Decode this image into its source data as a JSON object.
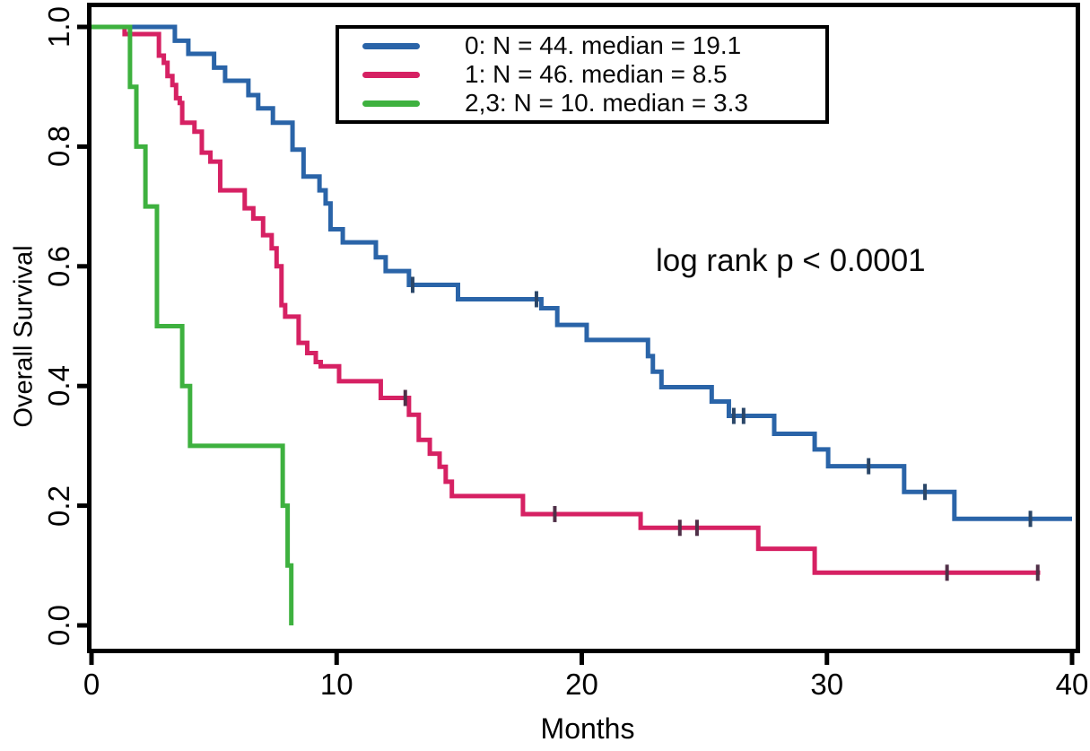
{
  "chart_data": {
    "type": "line",
    "subtype": "kaplan-meier-step-curves",
    "title": "",
    "xlabel": "Months",
    "ylabel": "Overall Survival",
    "annotation": "log rank p < 0.0001",
    "xlim": [
      0,
      40
    ],
    "ylim": [
      0.0,
      1.0
    ],
    "xticks": [
      "0",
      "10",
      "20",
      "30",
      "40"
    ],
    "yticks": [
      "0.0",
      "0.2",
      "0.4",
      "0.6",
      "0.8",
      "1.0"
    ],
    "grid": false,
    "legend_position": "top-left-inset",
    "axis_color": "#000000",
    "series": [
      {
        "name": "0",
        "label": "0: N = 44. median = 19.1",
        "n": 44,
        "median": 19.1,
        "color": "#2a64a8",
        "censor_color": "#2a4668",
        "start": [
          0,
          1.0
        ],
        "end_t": 40,
        "steps": [
          [
            3.4,
            0.977
          ],
          [
            3.95,
            0.955
          ],
          [
            5.0,
            0.932
          ],
          [
            5.45,
            0.91
          ],
          [
            6.4,
            0.886
          ],
          [
            6.8,
            0.864
          ],
          [
            7.4,
            0.84
          ],
          [
            8.2,
            0.795
          ],
          [
            8.65,
            0.75
          ],
          [
            9.3,
            0.727
          ],
          [
            9.55,
            0.705
          ],
          [
            9.75,
            0.662
          ],
          [
            10.25,
            0.64
          ],
          [
            11.6,
            0.615
          ],
          [
            12.0,
            0.592
          ],
          [
            12.95,
            0.569
          ],
          [
            14.95,
            0.545
          ],
          [
            18.35,
            0.53
          ],
          [
            19.0,
            0.502
          ],
          [
            20.2,
            0.477
          ],
          [
            22.7,
            0.45
          ],
          [
            22.9,
            0.424
          ],
          [
            23.25,
            0.398
          ],
          [
            25.3,
            0.374
          ],
          [
            26.0,
            0.35
          ],
          [
            27.85,
            0.32
          ],
          [
            29.5,
            0.294
          ],
          [
            30.05,
            0.266
          ],
          [
            33.15,
            0.223
          ],
          [
            35.2,
            0.178
          ]
        ],
        "censors": [
          [
            13.1,
            0.569
          ],
          [
            18.15,
            0.545
          ],
          [
            26.2,
            0.35
          ],
          [
            26.6,
            0.35
          ],
          [
            31.7,
            0.266
          ],
          [
            34.0,
            0.223
          ],
          [
            38.3,
            0.178
          ]
        ]
      },
      {
        "name": "1",
        "label": "1: N = 46. median = 8.5",
        "n": 46,
        "median": 8.5,
        "color": "#d62163",
        "censor_color": "#503048",
        "start": [
          0,
          1.0
        ],
        "end_t": 38.7,
        "steps": [
          [
            1.35,
            0.988
          ],
          [
            2.75,
            0.952
          ],
          [
            2.95,
            0.94
          ],
          [
            3.1,
            0.918
          ],
          [
            3.3,
            0.903
          ],
          [
            3.45,
            0.881
          ],
          [
            3.6,
            0.873
          ],
          [
            3.7,
            0.84
          ],
          [
            4.2,
            0.825
          ],
          [
            4.5,
            0.79
          ],
          [
            4.85,
            0.775
          ],
          [
            5.25,
            0.727
          ],
          [
            6.25,
            0.697
          ],
          [
            6.6,
            0.68
          ],
          [
            7.0,
            0.652
          ],
          [
            7.35,
            0.63
          ],
          [
            7.55,
            0.6
          ],
          [
            7.75,
            0.535
          ],
          [
            7.9,
            0.516
          ],
          [
            8.45,
            0.472
          ],
          [
            8.8,
            0.455
          ],
          [
            9.15,
            0.44
          ],
          [
            9.35,
            0.433
          ],
          [
            10.1,
            0.408
          ],
          [
            11.8,
            0.38
          ],
          [
            12.95,
            0.352
          ],
          [
            13.35,
            0.31
          ],
          [
            13.8,
            0.287
          ],
          [
            14.2,
            0.265
          ],
          [
            14.45,
            0.24
          ],
          [
            14.7,
            0.216
          ],
          [
            17.6,
            0.186
          ],
          [
            22.4,
            0.163
          ],
          [
            27.2,
            0.128
          ],
          [
            29.5,
            0.088
          ]
        ],
        "censors": [
          [
            12.8,
            0.38
          ],
          [
            18.9,
            0.186
          ],
          [
            24.0,
            0.163
          ],
          [
            24.7,
            0.163
          ],
          [
            34.9,
            0.088
          ],
          [
            38.6,
            0.088
          ]
        ]
      },
      {
        "name": "2,3",
        "label": "2,3: N = 10. median = 3.3",
        "n": 10,
        "median": 3.3,
        "color": "#3eb13f",
        "censor_color": "#2e7d32",
        "start": [
          0,
          1.0
        ],
        "end_t": 8.15,
        "steps": [
          [
            1.57,
            0.9
          ],
          [
            1.83,
            0.8
          ],
          [
            2.2,
            0.7
          ],
          [
            2.67,
            0.5
          ],
          [
            3.7,
            0.4
          ],
          [
            4.02,
            0.3
          ],
          [
            7.8,
            0.2
          ],
          [
            8.0,
            0.1
          ],
          [
            8.15,
            0.0
          ]
        ],
        "censors": []
      }
    ]
  }
}
